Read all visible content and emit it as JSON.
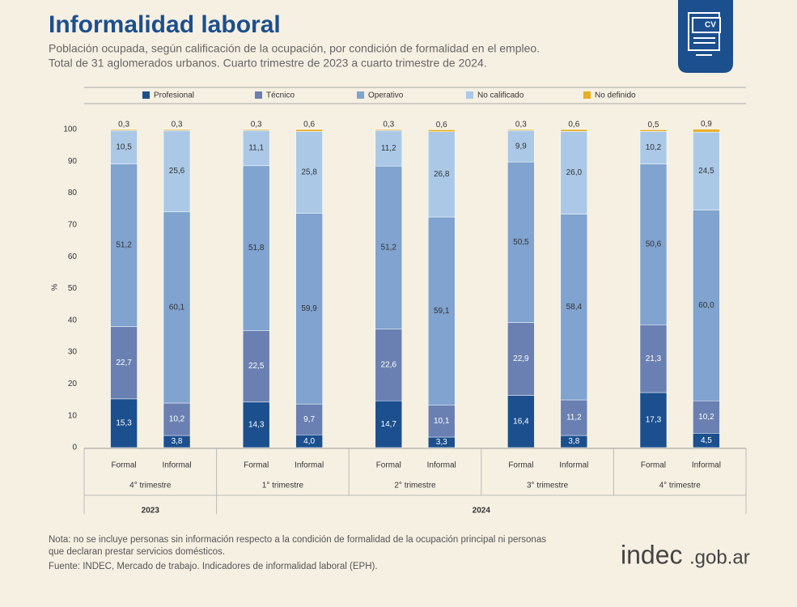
{
  "chart_data": {
    "type": "stacked-bar",
    "title": "Informalidad laboral",
    "subtitle": [
      "Población ocupada, según calificación de la ocupación, por condición de formalidad en el empleo.",
      "Total de 31 aglomerados urbanos. Cuarto trimestre de 2023 a cuarto trimestre de 2024."
    ],
    "y_label": "%",
    "ylim": [
      0,
      100
    ],
    "yticks": [
      0,
      10,
      20,
      30,
      40,
      50,
      60,
      70,
      80,
      90,
      100
    ],
    "categories": [
      "Formal",
      "Informal",
      "Formal",
      "Informal",
      "Formal",
      "Informal",
      "Formal",
      "Informal",
      "Formal",
      "Informal"
    ],
    "years": [
      {
        "label": "2023",
        "quarters": [
          "4° trimestre"
        ]
      },
      {
        "label": "2024",
        "quarters": [
          "1° trimestre",
          "2° trimestre",
          "3° trimestre",
          "4° trimestre"
        ]
      }
    ],
    "series": [
      {
        "name": "Profesional",
        "color": "#1b4f8e",
        "label_color": "#ffffff",
        "values": [
          15.3,
          3.8,
          14.3,
          4.0,
          14.7,
          3.3,
          16.4,
          3.8,
          17.3,
          4.5
        ],
        "value_labels": [
          "15,3",
          "3,8",
          "14,3",
          "4,0",
          "14,7",
          "3,3",
          "16,4",
          "3,8",
          "17,3",
          "4,5"
        ]
      },
      {
        "name": "Técnico",
        "color": "#6a80b2",
        "label_color": "#ffffff",
        "values": [
          22.7,
          10.2,
          22.5,
          9.7,
          22.6,
          10.1,
          22.9,
          11.2,
          21.3,
          10.2
        ],
        "value_labels": [
          "22,7",
          "10,2",
          "22,5",
          "9,7",
          "22,6",
          "10,1",
          "22,9",
          "11,2",
          "21,3",
          "10,2"
        ]
      },
      {
        "name": "Operativo",
        "color": "#80a3cf",
        "label_color": "#333333",
        "values": [
          51.2,
          60.1,
          51.8,
          59.9,
          51.2,
          59.1,
          50.5,
          58.4,
          50.6,
          60.0
        ],
        "value_labels": [
          "51,2",
          "60,1",
          "51,8",
          "59,9",
          "51,2",
          "59,1",
          "50,5",
          "58,4",
          "50,6",
          "60,0"
        ]
      },
      {
        "name": "No calificado",
        "color": "#abc9e7",
        "label_color": "#333333",
        "values": [
          10.5,
          25.6,
          11.1,
          25.8,
          11.2,
          26.8,
          9.9,
          26.0,
          10.2,
          24.5
        ],
        "value_labels": [
          "10,5",
          "25,6",
          "11,1",
          "25,8",
          "11,2",
          "26,8",
          "9,9",
          "26,0",
          "10,2",
          "24,5"
        ]
      },
      {
        "name": "No definido",
        "color": "#e8b020",
        "label_color": "#333333",
        "values": [
          0.3,
          0.3,
          0.3,
          0.6,
          0.3,
          0.6,
          0.3,
          0.6,
          0.5,
          0.9
        ],
        "value_labels": [
          "0,3",
          "0,3",
          "0,3",
          "0,6",
          "0,3",
          "0,6",
          "0,3",
          "0,6",
          "0,5",
          "0,9"
        ]
      }
    ],
    "note": [
      "Nota: no se incluye personas sin información respecto a la condición de formalidad de la ocupación principal ni personas",
      "que declaran prestar servicios domésticos."
    ],
    "source": "Fuente: INDEC, Mercado de trabajo. Indicadores de informalidad laboral (EPH).",
    "logo": {
      "name": "indec",
      "domain": ".gob.ar"
    }
  }
}
